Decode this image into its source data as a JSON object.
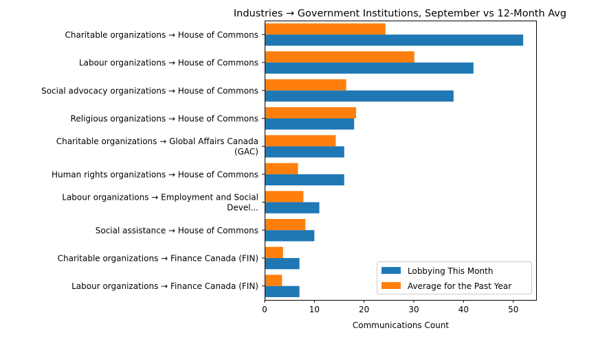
{
  "chart_data": {
    "type": "bar",
    "orientation": "horizontal",
    "title": "Industries → Government Institutions, September vs 12-Month Avg",
    "xlabel": "Communications Count",
    "ylabel": "",
    "xlim": [
      0,
      54.6
    ],
    "xticks": [
      "0",
      "10",
      "20",
      "30",
      "40",
      "50"
    ],
    "categories": [
      [
        "Charitable organizations → House of Commons"
      ],
      [
        "Labour organizations → House of Commons"
      ],
      [
        "Social advocacy organizations → House of Commons"
      ],
      [
        "Religious organizations → House of Commons"
      ],
      [
        "Charitable organizations → Global Affairs Canada",
        "(GAC)"
      ],
      [
        "Human rights organizations → House of Commons"
      ],
      [
        "Labour organizations → Employment and Social",
        "Devel..."
      ],
      [
        "Social assistance → House of Commons"
      ],
      [
        "Charitable organizations → Finance Canada (FIN)"
      ],
      [
        "Labour organizations → Finance Canada (FIN)"
      ]
    ],
    "series": [
      {
        "name": "Lobbying This Month",
        "color": "#1f77b4",
        "values": [
          52,
          42,
          38,
          18,
          16,
          16,
          11,
          10,
          7,
          7
        ]
      },
      {
        "name": "Average for the Past Year",
        "color": "#ff7f0e",
        "values": [
          24.3,
          30.1,
          16.4,
          18.4,
          14.3,
          6.7,
          7.8,
          8.2,
          3.7,
          3.5
        ]
      }
    ],
    "legend": "bottom-right",
    "grid": false
  }
}
